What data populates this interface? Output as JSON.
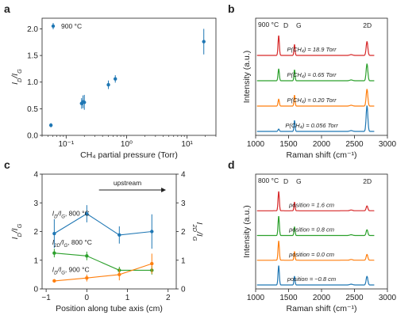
{
  "chart_data": [
    {
      "panel": "a",
      "type": "scatter",
      "xscale": "log",
      "xlim": [
        0.04,
        30
      ],
      "ylim": [
        0.0,
        2.2
      ],
      "xticks": [
        {
          "v": 0.1,
          "t": "10⁻¹"
        },
        {
          "v": 1,
          "t": "10⁰"
        },
        {
          "v": 10,
          "t": "10¹"
        }
      ],
      "yticks": [
        "0.0",
        "0.5",
        "1.0",
        "1.5",
        "2.0"
      ],
      "xlabel": "CH₄ partial pressure (Torr)",
      "ylabel_main": "I",
      "ylabel_sub1": "D",
      "ylabel_mid": "/I",
      "ylabel_sub2": "G",
      "legend": "900 °C",
      "color": "#1f77b4",
      "points": [
        {
          "x": 0.056,
          "y": 0.19,
          "err": 0.04
        },
        {
          "x": 0.18,
          "y": 0.6,
          "err": 0.1
        },
        {
          "x": 0.19,
          "y": 0.63,
          "err": 0.12
        },
        {
          "x": 0.2,
          "y": 0.62,
          "err": 0.14
        },
        {
          "x": 0.5,
          "y": 0.95,
          "err": 0.08
        },
        {
          "x": 0.65,
          "y": 1.06,
          "err": 0.07
        },
        {
          "x": 18.9,
          "y": 1.76,
          "err": 0.24
        }
      ]
    },
    {
      "panel": "b",
      "type": "line",
      "xlim": [
        1000,
        3000
      ],
      "xticks": [
        "1000",
        "1500",
        "2000",
        "2500",
        "3000"
      ],
      "xlabel": "Raman shift (cm⁻¹)",
      "ylabel": "Intensity (a.u.)",
      "temperature": "900 °C",
      "peaks": {
        "D": 1350,
        "G": 1590,
        "2D": 2690
      },
      "peak_labels": [
        "D",
        "G",
        "2D"
      ],
      "series": [
        {
          "label": "P(CH₄) = 18.9 Torr",
          "color": "#d62728",
          "D": 1.0,
          "G": 0.55,
          "D2": 0.7
        },
        {
          "label": "P(CH₄) = 0.65 Torr",
          "color": "#2ca02c",
          "D": 0.6,
          "G": 0.55,
          "D2": 0.85
        },
        {
          "label": "P(CH₄) = 0.20 Torr",
          "color": "#ff7f0e",
          "D": 0.35,
          "G": 0.55,
          "D2": 0.85
        },
        {
          "label": "P(CH₄) = 0.056 Torr",
          "color": "#1f77b4",
          "D": 0.12,
          "G": 0.55,
          "D2": 1.3
        }
      ]
    },
    {
      "panel": "c",
      "type": "line",
      "xlim": [
        -1.1,
        2.2
      ],
      "xticks": [
        "−1",
        "0",
        "1",
        "2"
      ],
      "ylim": [
        0,
        4
      ],
      "yticks": [
        "0",
        "1",
        "2",
        "3",
        "4"
      ],
      "xlabel": "Position along tube axis (cm)",
      "ylabel_left": "I_D/I_G",
      "ylabel_right": "I_2D/I_G",
      "annotation": "upstream",
      "series": [
        {
          "label_main": "I",
          "label_sub1": "D",
          "label_mid": "/I",
          "label_sub2": "G",
          "label_tail": ", 800 °C",
          "color": "#1f77b4",
          "x": [
            -0.8,
            0.0,
            0.8,
            1.6
          ],
          "y": [
            1.93,
            2.62,
            1.88,
            2.0
          ],
          "err": [
            0.5,
            0.3,
            0.3,
            0.6
          ]
        },
        {
          "label_main": "I",
          "label_sub1": "2D",
          "label_mid": "/I",
          "label_sub2": "G",
          "label_tail": ", 800 °C",
          "color": "#2ca02c",
          "x": [
            -0.8,
            0.0,
            0.8,
            1.6
          ],
          "y": [
            1.25,
            1.15,
            0.65,
            0.65
          ],
          "err": [
            0.15,
            0.15,
            0.12,
            0.15
          ]
        },
        {
          "label_main": "I",
          "label_sub1": "D",
          "label_mid": "/I",
          "label_sub2": "G",
          "label_tail": ", 900 °C",
          "color": "#ff7f0e",
          "x": [
            -0.8,
            0.0,
            0.8,
            1.6
          ],
          "y": [
            0.28,
            0.38,
            0.5,
            0.88
          ],
          "err": [
            0.06,
            0.12,
            0.2,
            0.35
          ]
        }
      ]
    },
    {
      "panel": "d",
      "type": "line",
      "xlim": [
        1000,
        3000
      ],
      "xticks": [
        "1000",
        "1500",
        "2000",
        "2500",
        "3000"
      ],
      "xlabel": "Raman shift (cm⁻¹)",
      "ylabel": "Intensity (a.u.)",
      "temperature": "800 °C",
      "peaks": {
        "D": 1350,
        "G": 1590,
        "2D": 2690
      },
      "peak_labels": [
        "D",
        "G",
        "2D"
      ],
      "series": [
        {
          "label": "position = 1.6 cm",
          "color": "#d62728",
          "D": 1.0,
          "G": 0.45,
          "D2": 0.25
        },
        {
          "label": "position = 0.8 cm",
          "color": "#2ca02c",
          "D": 1.0,
          "G": 0.45,
          "D2": 0.3
        },
        {
          "label": "position = 0.0 cm",
          "color": "#ff7f0e",
          "D": 1.0,
          "G": 0.45,
          "D2": 0.3
        },
        {
          "label": "position = −0.8 cm",
          "color": "#1f77b4",
          "D": 1.0,
          "G": 0.45,
          "D2": 0.45
        }
      ]
    }
  ]
}
